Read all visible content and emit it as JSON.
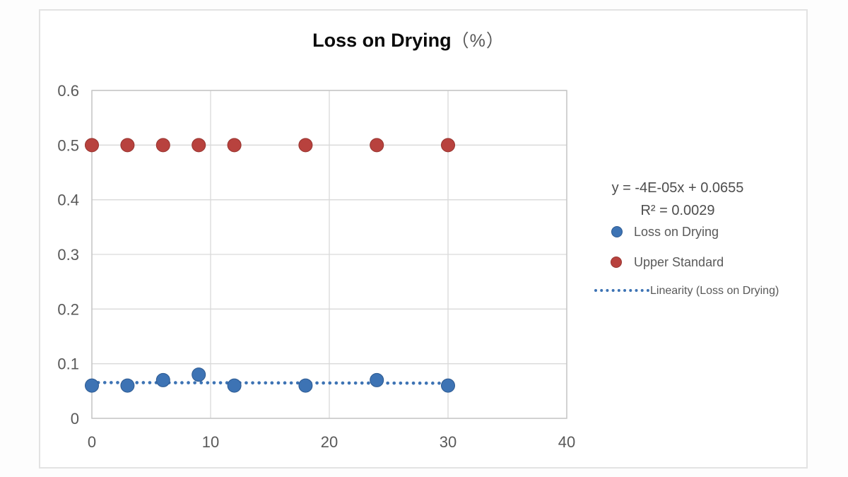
{
  "chart_data": {
    "type": "scatter",
    "title_main": "Loss on Drying",
    "title_unit": "（%）",
    "x": [
      0,
      3,
      6,
      9,
      12,
      18,
      24,
      30
    ],
    "series": [
      {
        "name": "Upper Standard",
        "color": "#b8423e",
        "stroke": "#96342f",
        "values": [
          0.5,
          0.5,
          0.5,
          0.5,
          0.5,
          0.5,
          0.5,
          0.5
        ]
      },
      {
        "name": "Loss on Drying",
        "color": "#3d73b4",
        "stroke": "#2d5a91",
        "values": [
          0.06,
          0.06,
          0.07,
          0.08,
          0.06,
          0.06,
          0.07,
          0.06
        ]
      }
    ],
    "trendline": {
      "label": "Linearity (Loss on Drying)",
      "equation": "y = -4E-05x + 0.0655",
      "r_squared": "R² = 0.0029",
      "slope": -4e-05,
      "intercept": 0.0655,
      "x_start": 0,
      "x_end": 30.6,
      "color": "#3d73b4"
    },
    "xlim": [
      0,
      40
    ],
    "ylim": [
      0,
      0.6
    ],
    "x_ticks": [
      {
        "v": 0,
        "label": "0"
      },
      {
        "v": 10,
        "label": "10"
      },
      {
        "v": 20,
        "label": "20"
      },
      {
        "v": 30,
        "label": "30"
      },
      {
        "v": 40,
        "label": "40"
      }
    ],
    "y_ticks": [
      {
        "v": 0.0,
        "label": "0"
      },
      {
        "v": 0.1,
        "label": "0.1"
      },
      {
        "v": 0.2,
        "label": "0.2"
      },
      {
        "v": 0.3,
        "label": "0.3"
      },
      {
        "v": 0.4,
        "label": "0.4"
      },
      {
        "v": 0.5,
        "label": "0.5"
      },
      {
        "v": 0.6,
        "label": "0.6"
      },
      {
        "v": 0.6,
        "label": ""
      }
    ],
    "grid": true,
    "legend_position": "right",
    "colors": {
      "gridline": "#d9d9d9",
      "plot_border": "#c6c6c6",
      "tick_label": "#595959"
    }
  }
}
